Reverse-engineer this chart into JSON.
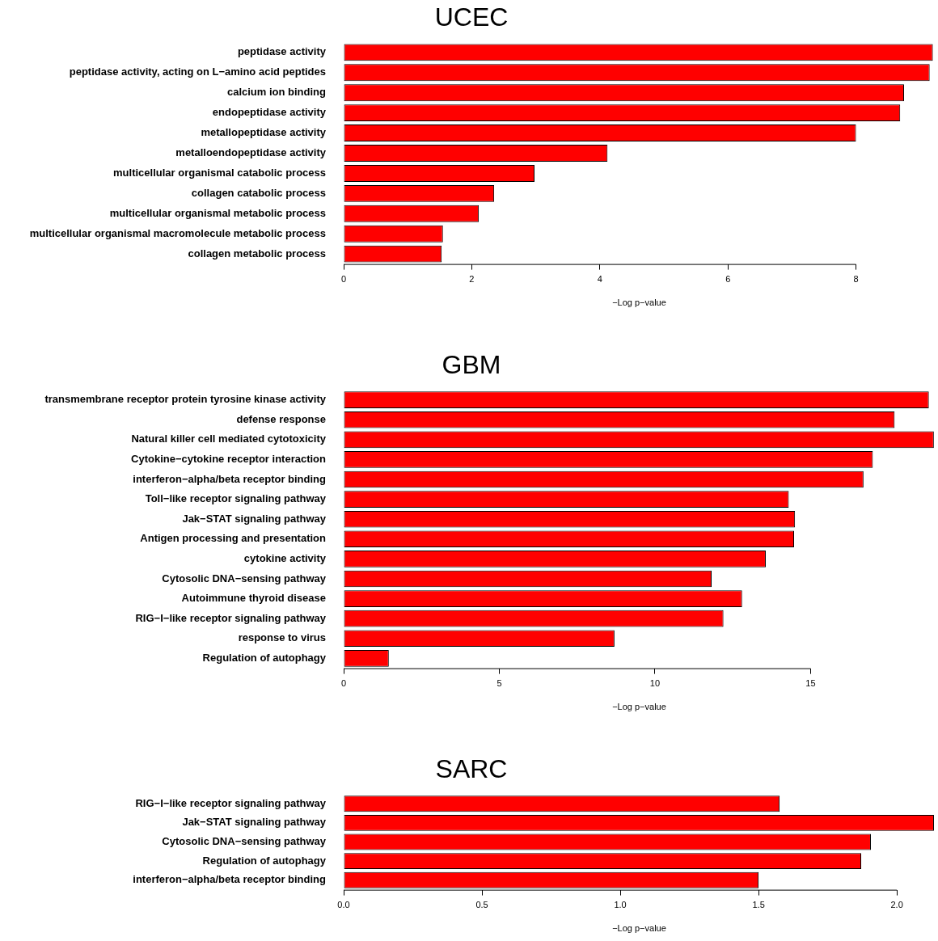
{
  "chart_data": [
    {
      "type": "bar",
      "orientation": "horizontal",
      "title": "UCEC",
      "xlabel": "−Log p−value",
      "color": "#ff0000",
      "categories": [
        "peptidase activity",
        "peptidase activity, acting on L−amino acid peptides",
        "calcium ion binding",
        "endopeptidase activity",
        "metallopeptidase activity",
        "metalloendopeptidase activity",
        "multicellular organismal catabolic process",
        "collagen catabolic process",
        "multicellular organismal metabolic process",
        "multicellular organismal macromolecule metabolic process",
        "collagen metabolic process"
      ],
      "values": [
        9.2,
        9.15,
        8.75,
        8.69,
        8.0,
        4.12,
        2.98,
        2.35,
        2.11,
        1.55,
        1.53
      ],
      "xlim": [
        0,
        9.23
      ],
      "xticks": [
        0,
        2,
        4,
        6,
        8
      ]
    },
    {
      "type": "bar",
      "orientation": "horizontal",
      "title": "GBM",
      "xlabel": "−Log p−value",
      "color": "#ff0000",
      "categories": [
        "transmembrane receptor protein tyrosine kinase activity",
        "defense response",
        "Natural killer cell mediated cytotoxicity",
        "Cytokine−cytokine receptor interaction",
        "interferon−alpha/beta receptor binding",
        "Toll−like receptor signaling pathway",
        "Jak−STAT signaling pathway",
        "Antigen processing and presentation",
        "cytokine activity",
        "Cytosolic DNA−sensing pathway",
        "Autoimmune thyroid disease",
        "RIG−I−like receptor signaling pathway",
        "response to virus",
        "Regulation of autophagy"
      ],
      "values": [
        18.8,
        17.7,
        18.96,
        17.0,
        16.7,
        14.3,
        14.5,
        14.47,
        13.56,
        11.82,
        12.8,
        12.2,
        8.7,
        1.45
      ],
      "xlim": [
        0,
        18.99
      ],
      "xticks": [
        0,
        5,
        10,
        15
      ]
    },
    {
      "type": "bar",
      "orientation": "horizontal",
      "title": "SARC",
      "xlabel": "−Log p−value",
      "color": "#ff0000",
      "categories": [
        "RIG−I−like receptor signaling pathway",
        "Jak−STAT signaling pathway",
        "Cytosolic DNA−sensing pathway",
        "Regulation of autophagy",
        "interferon−alpha/beta receptor binding"
      ],
      "values": [
        1.576,
        2.134,
        1.906,
        1.871,
        1.5
      ],
      "xlim": [
        0,
        2.137
      ],
      "xticks": [
        {
          "value": 0,
          "label": "0.0"
        },
        {
          "value": 0.5,
          "label": "0.5"
        },
        {
          "value": 1,
          "label": "1.0"
        },
        {
          "value": 1.5,
          "label": "1.5"
        },
        {
          "value": 2,
          "label": "2.0"
        }
      ]
    }
  ]
}
